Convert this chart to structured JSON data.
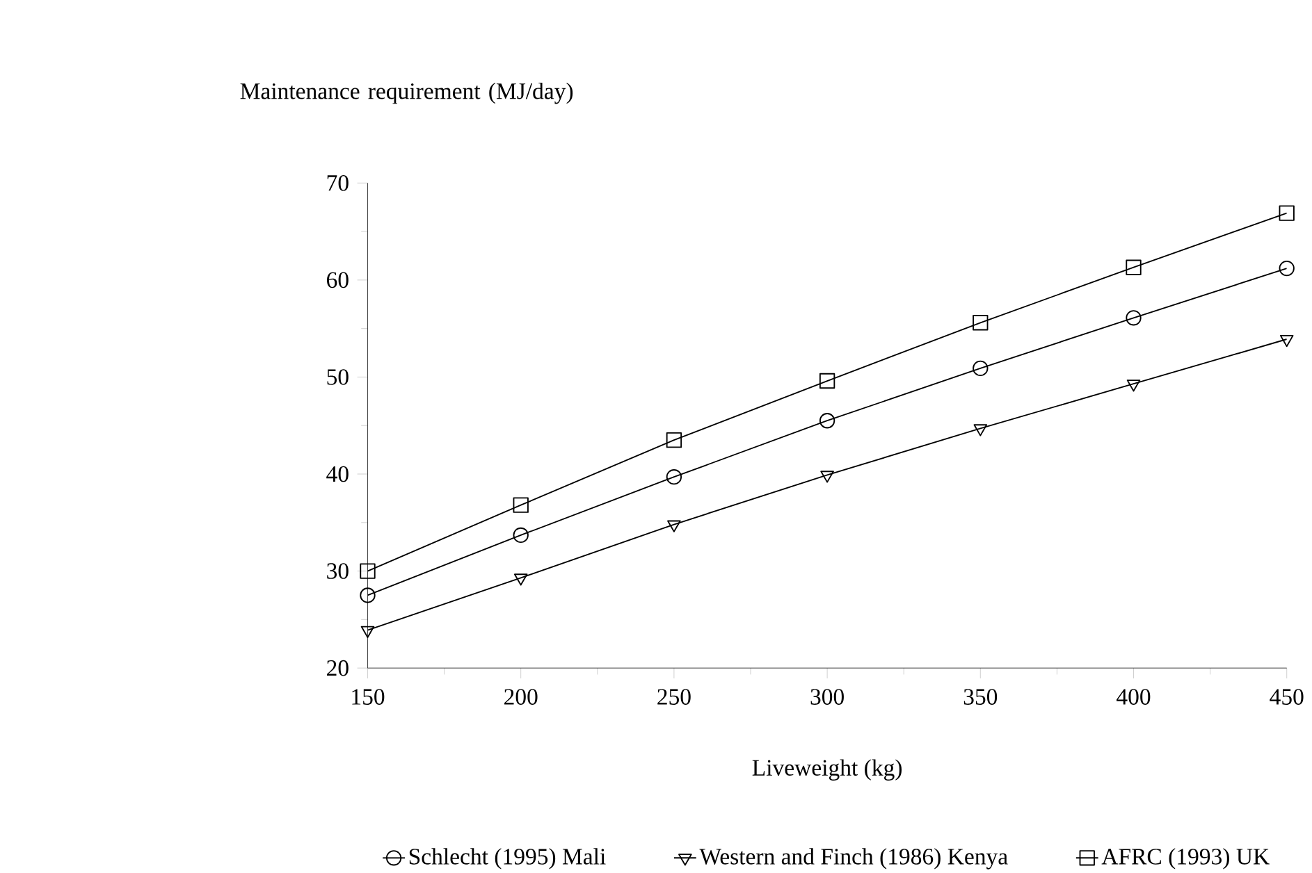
{
  "chart_data": {
    "type": "line",
    "xlabel": "Liveweight (kg)",
    "ylabel": "Maintenance requirement (MJ/day)",
    "x": [
      150,
      200,
      250,
      300,
      350,
      400,
      450
    ],
    "series": [
      {
        "name": "Schlecht (1995) Mali",
        "color": "#000000",
        "marker": "circle",
        "values": [
          27.5,
          33.7,
          39.7,
          45.5,
          50.9,
          56.1,
          61.2
        ]
      },
      {
        "name": "Western and Finch (1986) Kenya",
        "color": "#000000",
        "marker": "triangle",
        "values": [
          23.9,
          29.3,
          34.8,
          39.9,
          44.7,
          49.3,
          53.9
        ]
      },
      {
        "name": "AFRC (1993) UK",
        "color": "#000000",
        "marker": "square",
        "values": [
          30,
          36.8,
          43.5,
          49.6,
          55.6,
          61.3,
          66.9
        ]
      }
    ],
    "xlim": [
      150,
      450
    ],
    "ylim": [
      20,
      70
    ],
    "xticks": [
      150,
      {
        "value": 175,
        "label": null
      },
      200,
      {
        "value": 225,
        "label": null
      },
      250,
      {
        "value": 275,
        "label": null
      },
      300,
      {
        "value": 325,
        "label": null
      },
      350,
      {
        "value": 375,
        "label": null
      },
      400,
      {
        "value": 425,
        "label": null
      },
      450
    ],
    "yticks": [
      20,
      {
        "value": 25,
        "label": null
      },
      30,
      {
        "value": 35,
        "label": null
      },
      40,
      {
        "value": 45,
        "label": null
      },
      50,
      {
        "value": 55,
        "label": null
      },
      60,
      {
        "value": 65,
        "label": null
      },
      70
    ],
    "grid": false,
    "legend": "bottom",
    "line_style": "solid"
  }
}
